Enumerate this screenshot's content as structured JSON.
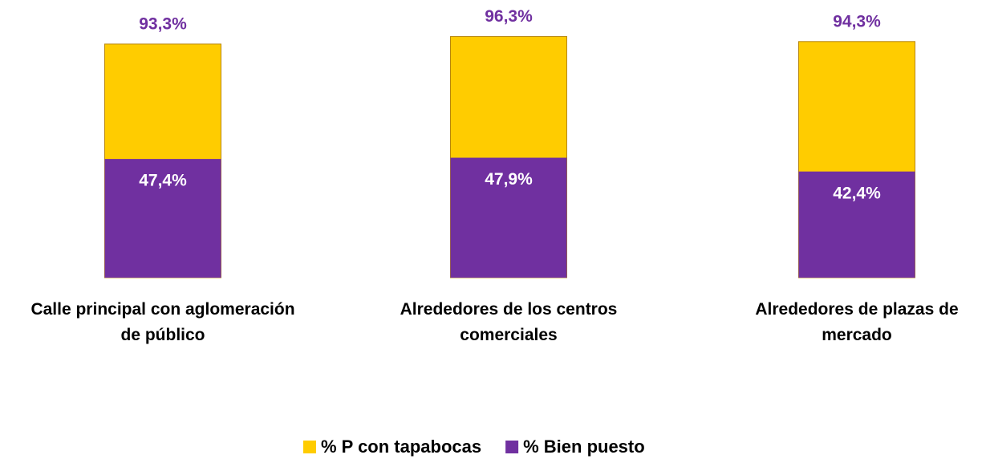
{
  "chart_data": {
    "type": "bar",
    "mode": "overlap",
    "categories": [
      "Calle principal con aglomeración de público",
      "Alrededores de los centros comerciales",
      "Alrededores de plazas de mercado"
    ],
    "series": [
      {
        "name": "% P con tapabocas",
        "color": "#FFCC00",
        "values": [
          93.3,
          96.3,
          94.3
        ],
        "value_labels": [
          "93,3%",
          "96,3%",
          "94,3%"
        ],
        "label_color": "#7030A0"
      },
      {
        "name": "% Bien puesto",
        "color": "#7030A0",
        "values": [
          47.4,
          47.9,
          42.4
        ],
        "value_labels": [
          "47,4%",
          "47,9%",
          "42,4%"
        ],
        "label_color": "#FFFFFF"
      }
    ],
    "ylim": [
      0,
      100
    ],
    "legend": "bottom"
  }
}
